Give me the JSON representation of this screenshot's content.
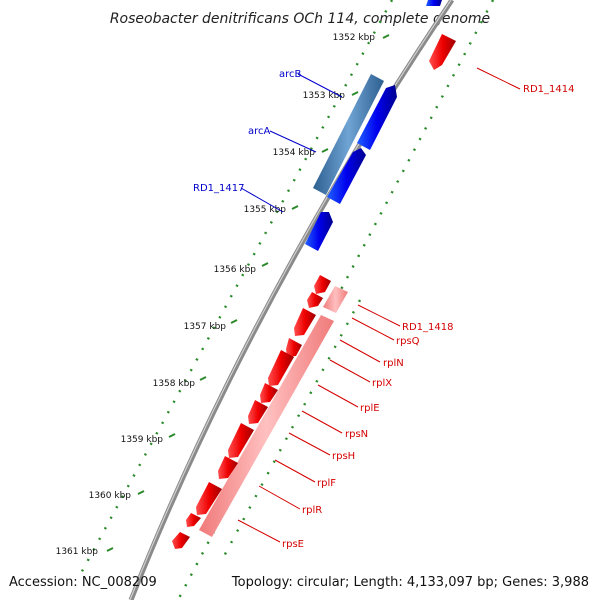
{
  "title": "Roseobacter denitrificans OCh 114, complete genome",
  "footer": {
    "accession": "Accession: NC_008209",
    "topology": "Topology: circular; Length: 4,133,097 bp; Genes: 3,988"
  },
  "ticks": [
    "1352 kbp",
    "1353 kbp",
    "1354 kbp",
    "1355 kbp",
    "1356 kbp",
    "1357 kbp",
    "1358 kbp",
    "1359 kbp",
    "1360 kbp",
    "1361 kbp"
  ],
  "genes": [
    {
      "label": "RD1_1414",
      "strand": "reverse",
      "color": "#d40000"
    },
    {
      "label": "arcB",
      "strand": "forward",
      "color": "#0000cc"
    },
    {
      "label": "arcA",
      "strand": "forward",
      "color": "#0000cc"
    },
    {
      "label": "RD1_1417",
      "strand": "forward",
      "color": "#0000cc"
    },
    {
      "label": "RD1_1418",
      "strand": "reverse",
      "color": "#d40000"
    },
    {
      "label": "rpsQ",
      "strand": "reverse",
      "color": "#d40000"
    },
    {
      "label": "rplN",
      "strand": "reverse",
      "color": "#d40000"
    },
    {
      "label": "rplX",
      "strand": "reverse",
      "color": "#d40000"
    },
    {
      "label": "rplE",
      "strand": "reverse",
      "color": "#d40000"
    },
    {
      "label": "rpsN",
      "strand": "reverse",
      "color": "#d40000"
    },
    {
      "label": "rpsH",
      "strand": "reverse",
      "color": "#d40000"
    },
    {
      "label": "rplF",
      "strand": "reverse",
      "color": "#d40000"
    },
    {
      "label": "rplR",
      "strand": "reverse",
      "color": "#d40000"
    },
    {
      "label": "rpsE",
      "strand": "reverse",
      "color": "#d40000"
    }
  ],
  "colors": {
    "forward_cds": "#0000ee",
    "forward_operon": "#4a86bf",
    "reverse_cds": "#ee0000",
    "reverse_operon": "#f08c8c",
    "backbone": "#8a8a8a",
    "gc_dots": "#2a8a2a",
    "leader_forward": "#0000cc",
    "leader_reverse": "#d40000"
  }
}
